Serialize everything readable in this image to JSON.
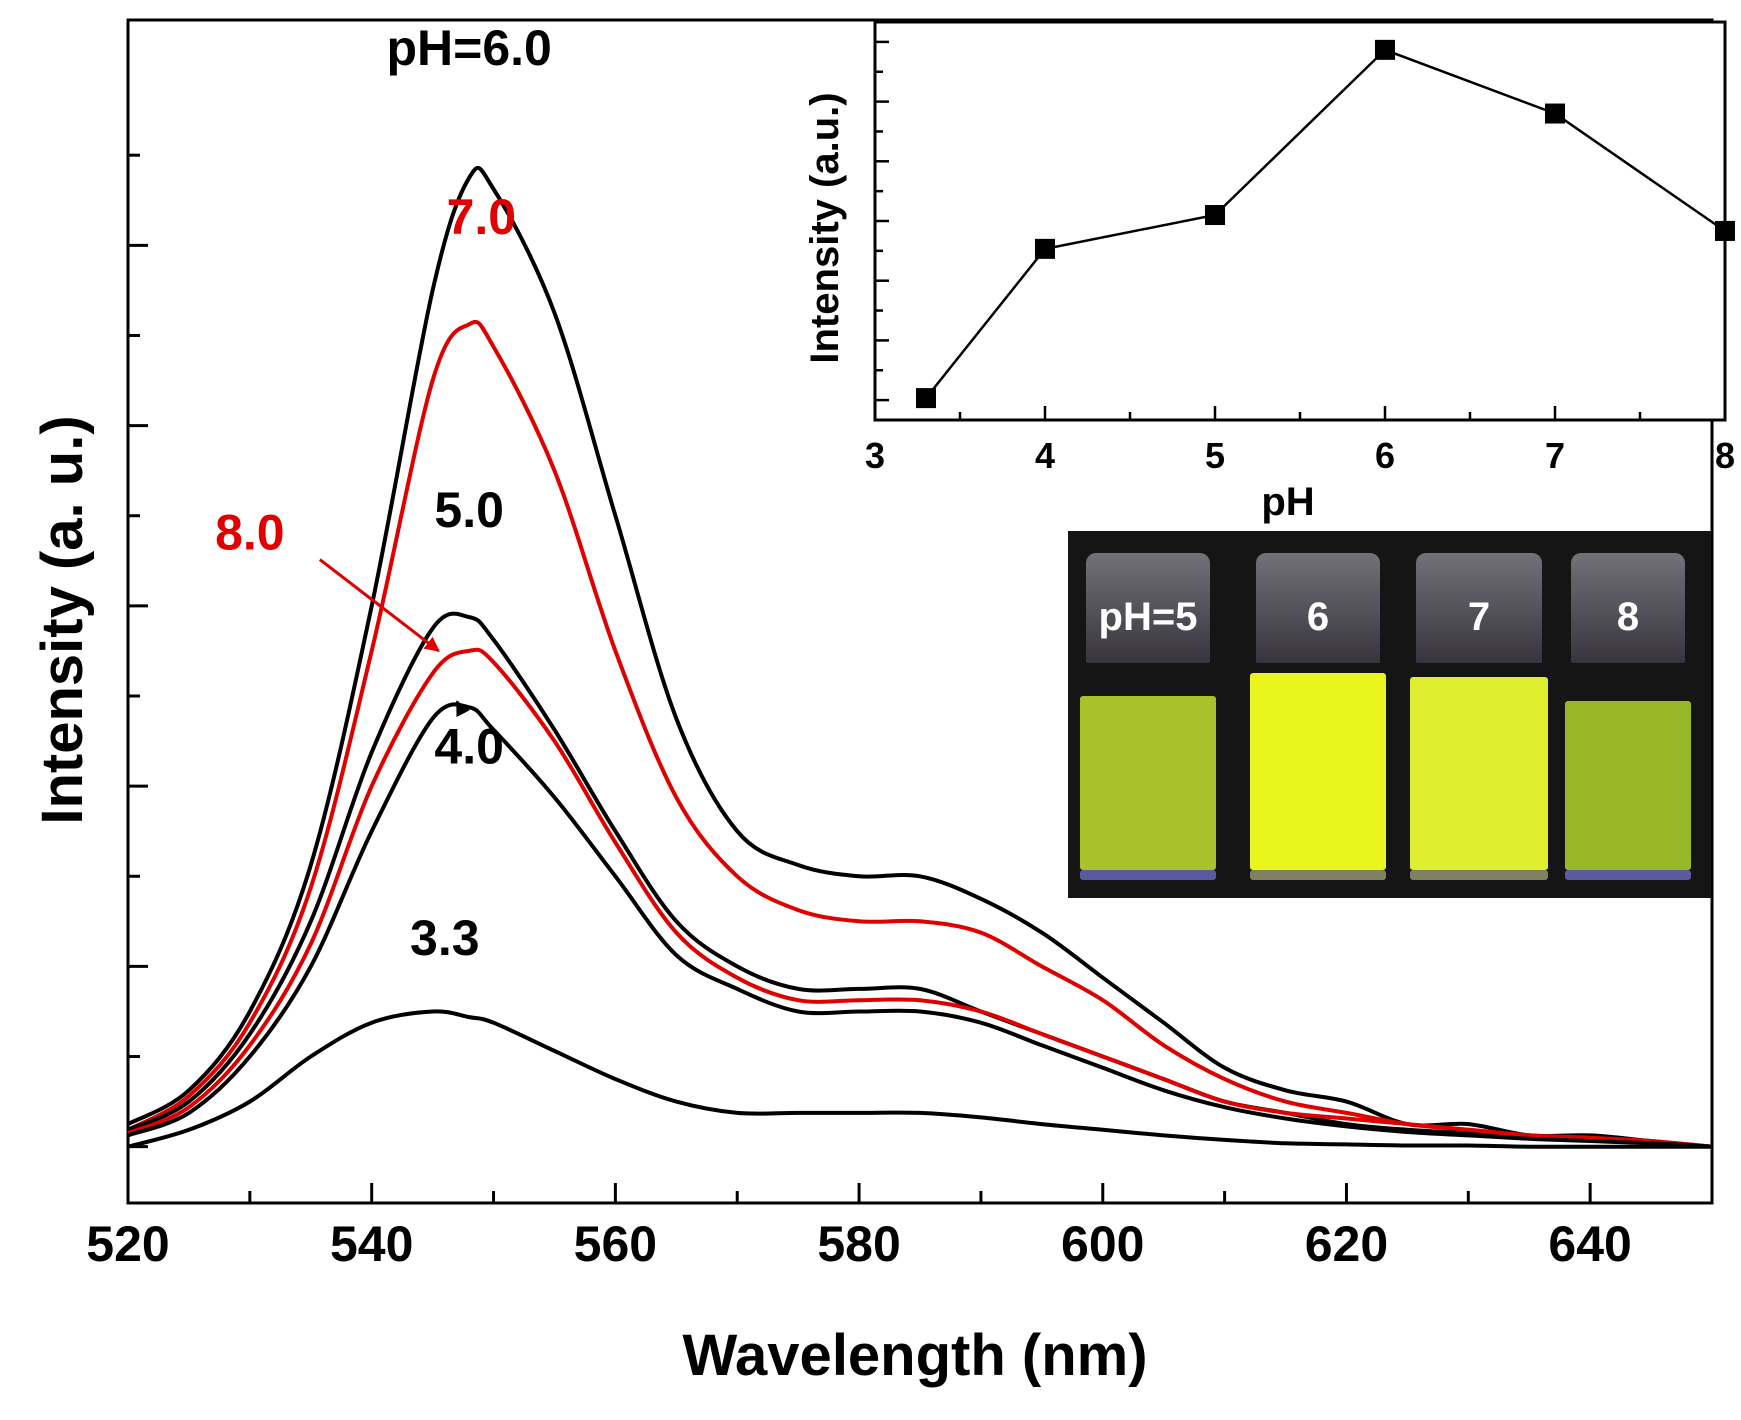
{
  "chart_data": [
    {
      "type": "line",
      "id": "main-spectrum",
      "xlabel": "Wavelength (nm)",
      "ylabel": "Intensity (a. u.)",
      "xlim": [
        520,
        650
      ],
      "ylim": [
        -5,
        100
      ],
      "xticks": [
        520,
        540,
        560,
        580,
        600,
        620,
        640
      ],
      "x": [
        520,
        525,
        530,
        535,
        540,
        545,
        548,
        550,
        555,
        560,
        565,
        570,
        575,
        580,
        585,
        590,
        595,
        600,
        605,
        610,
        615,
        620,
        625,
        630,
        635,
        640,
        645,
        650
      ],
      "series": [
        {
          "name": "pH=6.0",
          "label": "pH=6.0",
          "color": "#000000",
          "peak_x": 549,
          "label_x": 548,
          "label_y": 96,
          "values": [
            2,
            5,
            12,
            25,
            48,
            76,
            86,
            85,
            74,
            56,
            38,
            28,
            25,
            24,
            24,
            22,
            19,
            15,
            11,
            7,
            5,
            4,
            2,
            2,
            1,
            1,
            0.5,
            0
          ]
        },
        {
          "name": "7.0",
          "label": "7.0",
          "color": "#e00000",
          "peak_x": 549,
          "label_x": 549,
          "label_y": 81,
          "values": [
            1.5,
            4.5,
            11,
            23,
            44,
            68,
            73,
            71,
            60,
            44,
            31,
            24,
            21,
            20,
            20,
            19,
            16,
            13,
            9,
            6,
            4,
            3,
            2,
            1.5,
            1,
            0.8,
            0.5,
            0
          ]
        },
        {
          "name": "5.0",
          "label": "5.0",
          "color": "#000000",
          "peak_x": 547,
          "label_x": 548,
          "label_y": 55,
          "values": [
            1.5,
            4,
            10,
            20,
            35,
            46,
            47,
            45,
            37,
            28,
            20,
            16,
            14,
            14,
            14,
            12,
            10,
            8,
            6,
            4,
            3,
            2,
            1.5,
            1.2,
            1,
            0.6,
            0.4,
            0
          ]
        },
        {
          "name": "8.0",
          "label": "8.0",
          "color": "#e00000",
          "peak_x": 548,
          "label_x": 530,
          "label_y": 53,
          "values": [
            1.2,
            3.5,
            9,
            18,
            32,
            42,
            44,
            43,
            36,
            27,
            19,
            15,
            13,
            13,
            13,
            12,
            10,
            8,
            6,
            4,
            3,
            2.5,
            2,
            1.5,
            1,
            0.7,
            0.4,
            0
          ]
        },
        {
          "name": "4.0",
          "label": "4.0",
          "color": "#000000",
          "peak_x": 547,
          "label_x": 548,
          "label_y": 34,
          "values": [
            1,
            3,
            8,
            16,
            28,
            38,
            39,
            37,
            31,
            24,
            17,
            14,
            12,
            12,
            12,
            11,
            9,
            7,
            5,
            3.5,
            2.5,
            1.8,
            1.3,
            1,
            0.7,
            0.5,
            0.3,
            0
          ]
        },
        {
          "name": "3.3",
          "label": "3.3",
          "color": "#000000",
          "peak_x": 546,
          "label_x": 546,
          "label_y": 17,
          "values": [
            0,
            1.5,
            4,
            8,
            11,
            12,
            11.5,
            11,
            8.5,
            6,
            4,
            3,
            3,
            3,
            3,
            2.6,
            2,
            1.5,
            1,
            0.6,
            0.3,
            0.2,
            0.1,
            0.1,
            0,
            0,
            0,
            0
          ]
        }
      ],
      "annotations": [
        {
          "text": "8.0",
          "from_series": "8.0",
          "arrow": true
        },
        {
          "text": "4.0",
          "from_series": "4.0",
          "arrow": true
        }
      ]
    },
    {
      "type": "line",
      "id": "inset-ph",
      "xlabel": "pH",
      "ylabel": "Intensity (a.u.)",
      "xlim": [
        3,
        8
      ],
      "ylim": [
        0,
        100
      ],
      "xticks": [
        3,
        4,
        5,
        6,
        7,
        8
      ],
      "x": [
        3.3,
        4,
        5,
        6,
        7,
        8
      ],
      "values": [
        5.5,
        43,
        51.5,
        93,
        77,
        47.5
      ],
      "color": "#000000"
    }
  ],
  "photo": {
    "labels": [
      "pH=5",
      "6",
      "7",
      "8"
    ],
    "liquid_colors": [
      "#a9c22a",
      "#e9f51c",
      "#dfee2e",
      "#98b828"
    ]
  }
}
